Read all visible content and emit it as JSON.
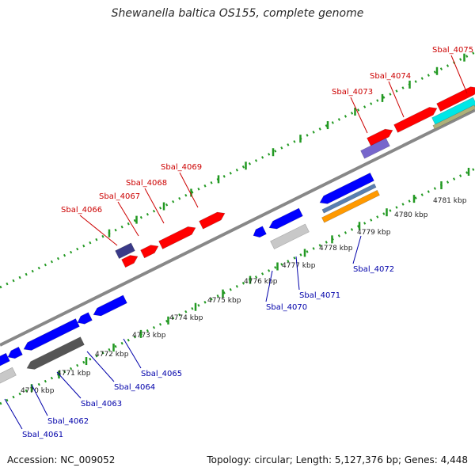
{
  "header": {
    "title": "Shewanella baltica OS155, complete genome"
  },
  "footer": {
    "accession": "Accession: NC_009052",
    "topology": "Topology: circular; Length: 5,127,376 bp; Genes: 4,448"
  },
  "ruler": {
    "unit": "kbp",
    "ticks": [
      "4770 kbp",
      "4771 kbp",
      "4772 kbp",
      "4773 kbp",
      "4774 kbp",
      "4775 kbp",
      "4776 kbp",
      "4777 kbp",
      "4778 kbp",
      "4779 kbp",
      "4780 kbp",
      "4781 kbp"
    ]
  },
  "genes": {
    "forward_strand": [
      "Sbal_4066",
      "Sbal_4067",
      "Sbal_4068",
      "Sbal_4069",
      "Sbal_4073",
      "Sbal_4074",
      "Sbal_4075"
    ],
    "reverse_strand": [
      "Sbal_4061",
      "Sbal_4062",
      "Sbal_4063",
      "Sbal_4064",
      "Sbal_4065",
      "Sbal_4070",
      "Sbal_4071",
      "Sbal_4072"
    ]
  },
  "colors": {
    "forward_cds": "#ff0000",
    "reverse_cds": "#0000ff",
    "forward_label": "#cc0000",
    "reverse_label": "#0000aa",
    "backbone": "#888888",
    "tick": "#229922",
    "rRNA": "#00e6e6",
    "other_feature": "#b0b07a",
    "pseudo_gene": "#c8c8c8",
    "misc_feature_dark": "#555555",
    "misc_purple": "#7766cc",
    "misc_navy": "#3a3a88",
    "tRNA": "#ff9900",
    "misc_steel": "#5a7fb0"
  }
}
